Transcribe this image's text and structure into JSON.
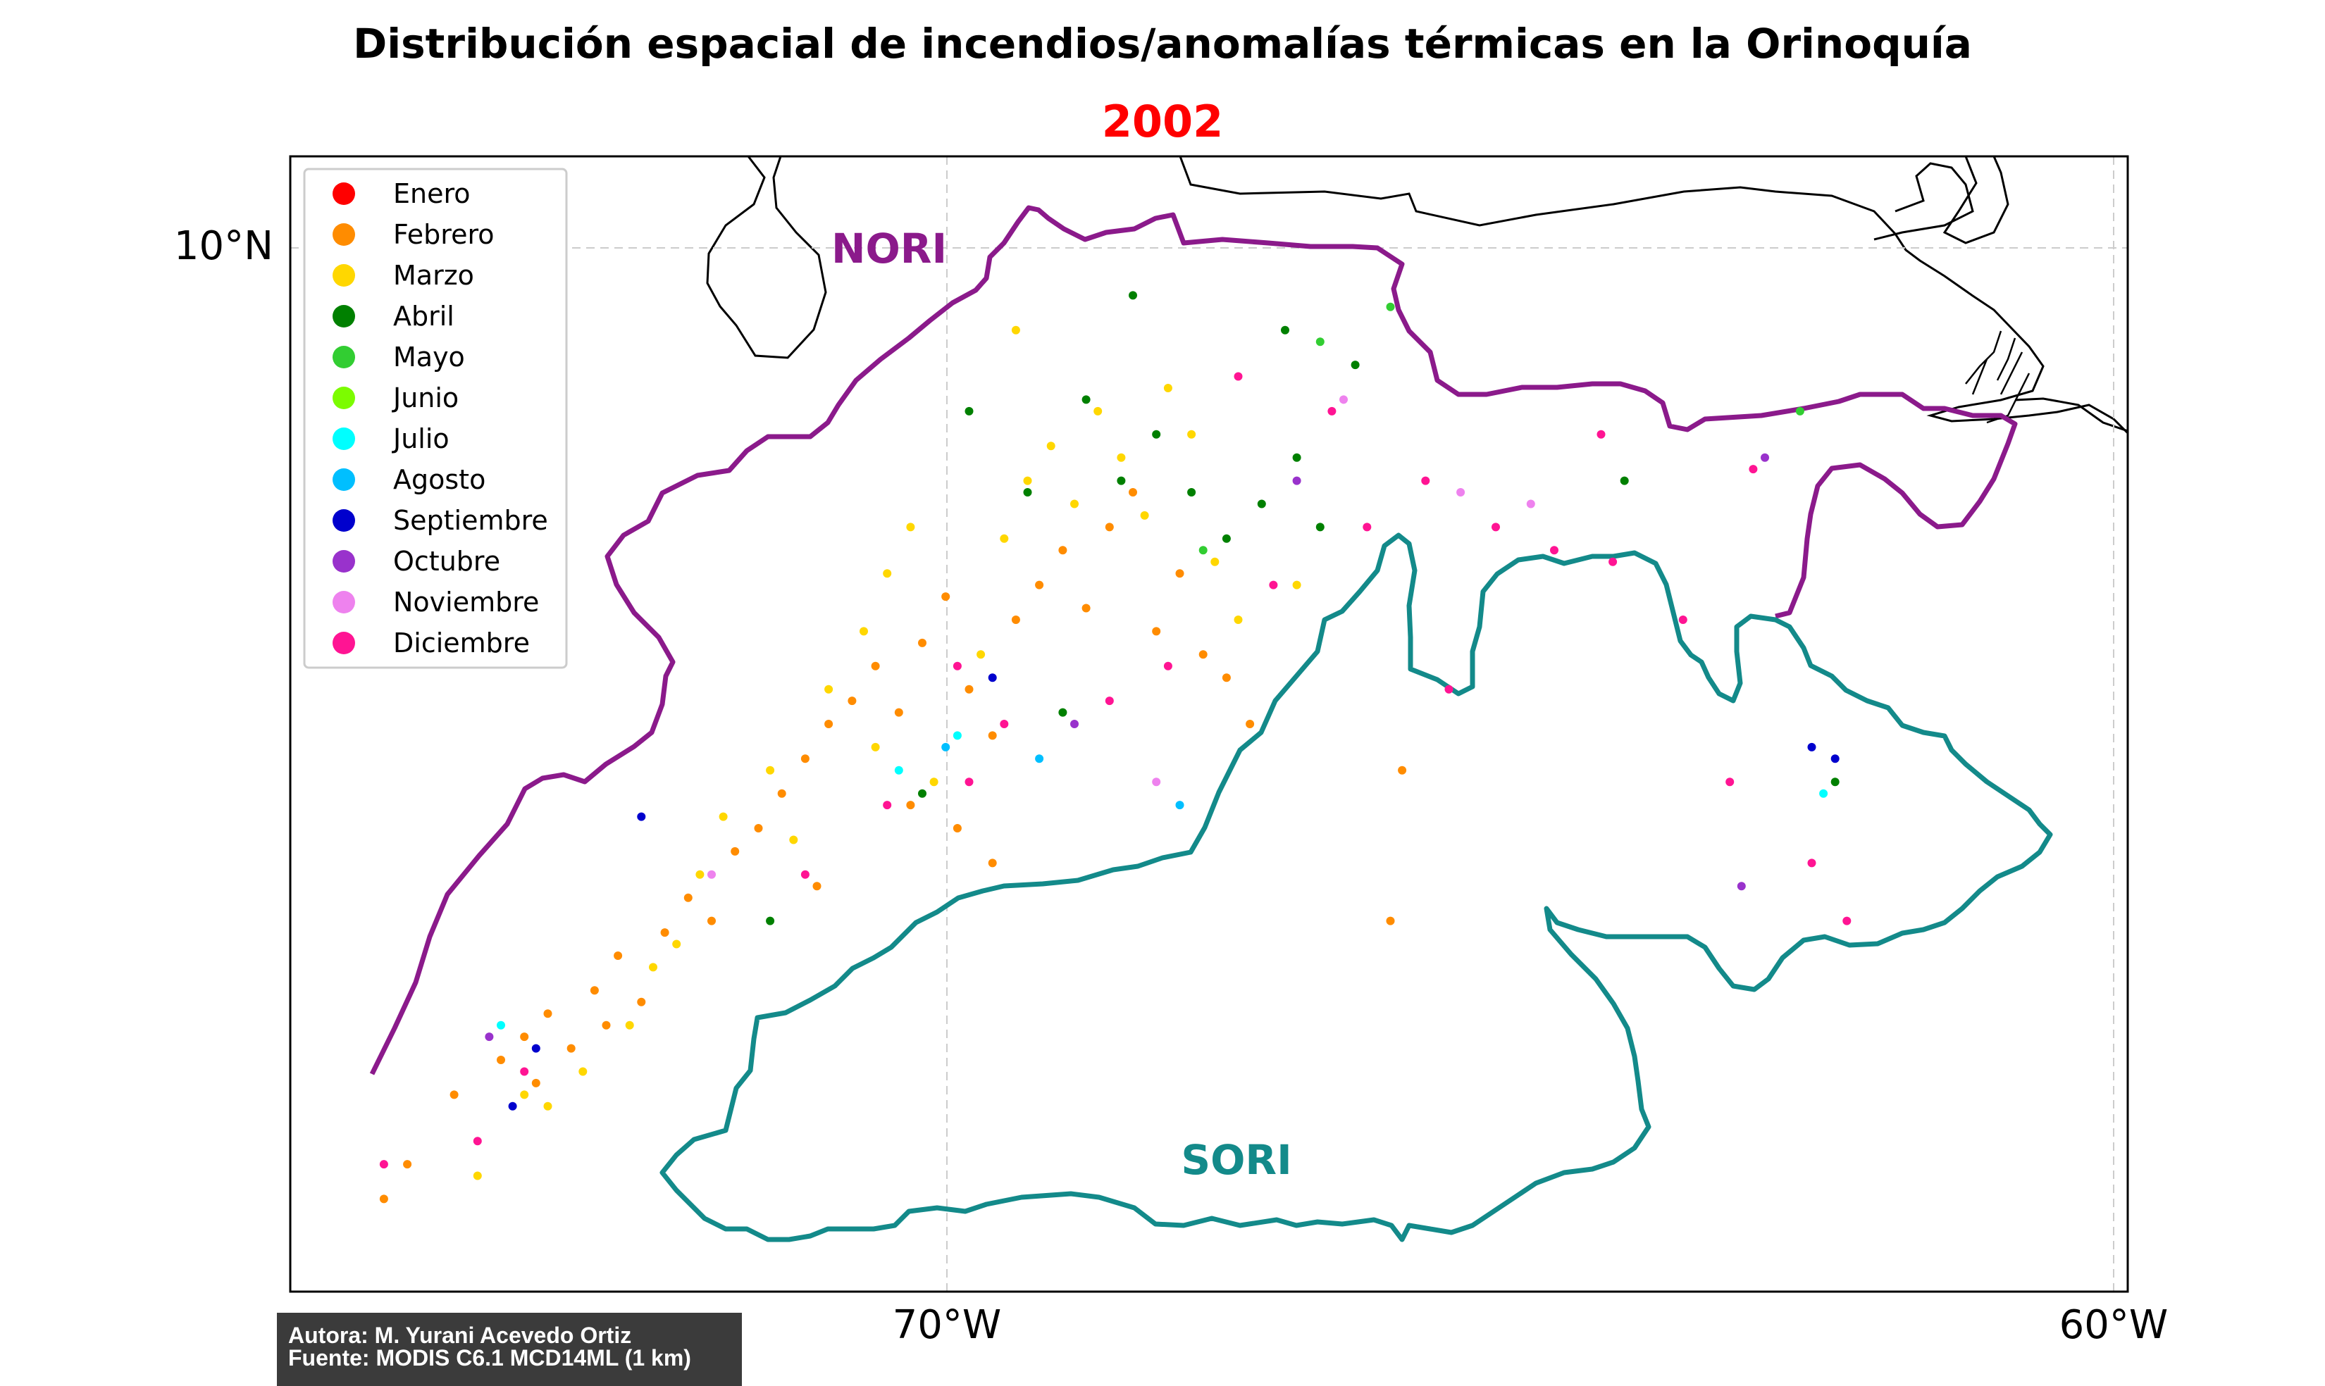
{
  "title": "Distribución espacial de incendios/anomalías térmicas en la Orinoquía",
  "subtitle": "2002",
  "credits": {
    "author": "Autora: M. Yurani Acevedo Ortiz",
    "source": "Fuente: MODIS C6.1 MCD14ML (1 km)"
  },
  "axes": {
    "lat_label": "10°N",
    "lon_labels": [
      "70°W",
      "60°W"
    ]
  },
  "regions": {
    "north": {
      "label": "NORI",
      "color": "#8b1a8b"
    },
    "south": {
      "label": "SORI",
      "color": "#138a8a"
    }
  },
  "legend": {
    "placement": "upper-left",
    "items": [
      {
        "label": "Enero",
        "color": "#ff0000"
      },
      {
        "label": "Febrero",
        "color": "#ff8c00"
      },
      {
        "label": "Marzo",
        "color": "#ffd700"
      },
      {
        "label": "Abril",
        "color": "#008000"
      },
      {
        "label": "Mayo",
        "color": "#32cd32"
      },
      {
        "label": "Junio",
        "color": "#7cfc00"
      },
      {
        "label": "Julio",
        "color": "#00ffff"
      },
      {
        "label": "Agosto",
        "color": "#00bfff"
      },
      {
        "label": "Septiembre",
        "color": "#0000cd"
      },
      {
        "label": "Octubre",
        "color": "#9932cc"
      },
      {
        "label": "Noviembre",
        "color": "#ee82ee"
      },
      {
        "label": "Diciembre",
        "color": "#ff1493"
      }
    ]
  },
  "chart_data": {
    "type": "scatter",
    "title": "Distribución espacial de incendios/anomalías térmicas en la Orinoquía",
    "subtitle": "2002",
    "x_range": [
      -75.6,
      -59.9
    ],
    "y_range": [
      1.0,
      10.8
    ],
    "series": [
      {
        "name": "Febrero",
        "color": "#ff8c00",
        "points": [
          [
            -73.8,
            3.0
          ],
          [
            -73.6,
            3.2
          ],
          [
            -73.4,
            3.4
          ],
          [
            -73.2,
            3.1
          ],
          [
            -73.0,
            3.6
          ],
          [
            -72.8,
            3.9
          ],
          [
            -72.6,
            3.5
          ],
          [
            -72.4,
            4.1
          ],
          [
            -72.2,
            4.4
          ],
          [
            -72.0,
            4.2
          ],
          [
            -71.8,
            4.8
          ],
          [
            -71.6,
            5.0
          ],
          [
            -71.4,
            5.3
          ],
          [
            -71.2,
            5.6
          ],
          [
            -71.0,
            5.9
          ],
          [
            -70.8,
            6.1
          ],
          [
            -70.6,
            6.4
          ],
          [
            -70.4,
            6.0
          ],
          [
            -70.2,
            6.6
          ],
          [
            -70.0,
            7.0
          ],
          [
            -69.8,
            6.2
          ],
          [
            -69.6,
            5.8
          ],
          [
            -69.4,
            6.8
          ],
          [
            -69.2,
            7.1
          ],
          [
            -69.0,
            7.4
          ],
          [
            -68.8,
            6.9
          ],
          [
            -68.6,
            7.6
          ],
          [
            -68.4,
            7.9
          ],
          [
            -68.2,
            6.7
          ],
          [
            -68.0,
            7.2
          ],
          [
            -67.8,
            6.5
          ],
          [
            -67.6,
            6.3
          ],
          [
            -67.4,
            5.9
          ],
          [
            -69.9,
            5.0
          ],
          [
            -69.6,
            4.7
          ],
          [
            -70.3,
            5.2
          ],
          [
            -71.1,
            4.5
          ],
          [
            -72.9,
            3.3
          ],
          [
            -73.5,
            2.8
          ],
          [
            -74.2,
            2.7
          ],
          [
            -74.6,
            2.1
          ],
          [
            -74.8,
            1.8
          ],
          [
            -66.1,
            5.5
          ],
          [
            -66.2,
            4.2
          ]
        ]
      },
      {
        "name": "Marzo",
        "color": "#ffd700",
        "points": [
          [
            -73.6,
            2.7
          ],
          [
            -73.1,
            2.9
          ],
          [
            -72.7,
            3.3
          ],
          [
            -72.5,
            3.8
          ],
          [
            -72.1,
            4.6
          ],
          [
            -71.9,
            5.1
          ],
          [
            -71.5,
            5.5
          ],
          [
            -71.0,
            6.2
          ],
          [
            -70.7,
            6.7
          ],
          [
            -70.5,
            7.2
          ],
          [
            -70.3,
            7.6
          ],
          [
            -70.1,
            5.4
          ],
          [
            -69.7,
            6.5
          ],
          [
            -69.5,
            7.5
          ],
          [
            -69.3,
            8.0
          ],
          [
            -69.1,
            8.3
          ],
          [
            -68.9,
            7.8
          ],
          [
            -68.7,
            8.6
          ],
          [
            -68.5,
            8.2
          ],
          [
            -68.3,
            7.7
          ],
          [
            -68.1,
            8.8
          ],
          [
            -67.9,
            8.4
          ],
          [
            -67.7,
            7.3
          ],
          [
            -67.5,
            6.8
          ],
          [
            -70.6,
            5.7
          ],
          [
            -71.3,
            4.9
          ],
          [
            -72.3,
            4.0
          ],
          [
            -73.4,
            2.6
          ],
          [
            -74.0,
            2.0
          ],
          [
            -69.4,
            9.3
          ],
          [
            -67.0,
            7.1
          ]
        ]
      },
      {
        "name": "Abril",
        "color": "#008000",
        "points": [
          [
            -68.8,
            8.7
          ],
          [
            -68.5,
            8.0
          ],
          [
            -68.2,
            8.4
          ],
          [
            -67.9,
            7.9
          ],
          [
            -67.6,
            7.5
          ],
          [
            -67.3,
            7.8
          ],
          [
            -67.0,
            8.2
          ],
          [
            -66.8,
            7.6
          ],
          [
            -66.5,
            9.0
          ],
          [
            -67.1,
            9.3
          ],
          [
            -68.4,
            9.6
          ],
          [
            -69.3,
            7.9
          ],
          [
            -69.0,
            6.0
          ],
          [
            -69.8,
            8.6
          ],
          [
            -70.2,
            5.3
          ],
          [
            -71.5,
            4.2
          ],
          [
            -64.2,
            8.0
          ],
          [
            -62.4,
            5.4
          ]
        ]
      },
      {
        "name": "Mayo",
        "color": "#32cd32",
        "points": [
          [
            -66.8,
            9.2
          ],
          [
            -66.2,
            9.5
          ],
          [
            -67.8,
            7.4
          ],
          [
            -62.7,
            8.6
          ]
        ]
      },
      {
        "name": "Julio",
        "color": "#00ffff",
        "points": [
          [
            -69.9,
            5.8
          ],
          [
            -70.4,
            5.5
          ],
          [
            -73.8,
            3.3
          ],
          [
            -62.5,
            5.3
          ]
        ]
      },
      {
        "name": "Agosto",
        "color": "#00bfff",
        "points": [
          [
            -69.2,
            5.6
          ],
          [
            -70.0,
            5.7
          ],
          [
            -68.0,
            5.2
          ]
        ]
      },
      {
        "name": "Septiembre",
        "color": "#0000cd",
        "points": [
          [
            -72.6,
            5.1
          ],
          [
            -73.5,
            3.1
          ],
          [
            -73.7,
            2.6
          ],
          [
            -69.6,
            6.3
          ],
          [
            -62.4,
            5.6
          ],
          [
            -62.6,
            5.7
          ]
        ]
      },
      {
        "name": "Octubre",
        "color": "#9932cc",
        "points": [
          [
            -67.0,
            8.0
          ],
          [
            -68.9,
            5.9
          ],
          [
            -73.9,
            3.2
          ],
          [
            -63.2,
            4.5
          ],
          [
            -63.0,
            8.2
          ]
        ]
      },
      {
        "name": "Noviembre",
        "color": "#ee82ee",
        "points": [
          [
            -66.6,
            8.7
          ],
          [
            -65.6,
            7.9
          ],
          [
            -65.0,
            7.8
          ],
          [
            -68.2,
            5.4
          ],
          [
            -72.0,
            4.6
          ]
        ]
      },
      {
        "name": "Diciembre",
        "color": "#ff1493",
        "points": [
          [
            -69.8,
            5.4
          ],
          [
            -69.5,
            5.9
          ],
          [
            -68.6,
            6.1
          ],
          [
            -67.2,
            7.1
          ],
          [
            -66.4,
            7.6
          ],
          [
            -65.9,
            8.0
          ],
          [
            -65.3,
            7.6
          ],
          [
            -64.8,
            7.4
          ],
          [
            -64.3,
            7.3
          ],
          [
            -63.7,
            6.8
          ],
          [
            -63.1,
            8.1
          ],
          [
            -62.6,
            4.7
          ],
          [
            -62.3,
            4.2
          ],
          [
            -63.3,
            5.4
          ],
          [
            -69.9,
            6.4
          ],
          [
            -70.5,
            5.2
          ],
          [
            -71.2,
            4.6
          ],
          [
            -73.6,
            2.9
          ],
          [
            -74.0,
            2.3
          ],
          [
            -74.8,
            2.1
          ],
          [
            -66.7,
            8.6
          ],
          [
            -67.5,
            8.9
          ],
          [
            -68.1,
            6.4
          ],
          [
            -65.7,
            6.2
          ],
          [
            -64.4,
            8.4
          ]
        ]
      }
    ]
  }
}
